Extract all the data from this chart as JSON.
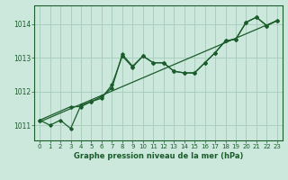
{
  "title": "Graphe pression niveau de la mer (hPa)",
  "bg_color": "#cce8dd",
  "grid_color": "#aacfbf",
  "line_color": "#1a5c2a",
  "marker_color": "#1a5c2a",
  "xlim": [
    -0.5,
    23.5
  ],
  "ylim": [
    1010.55,
    1014.55
  ],
  "yticks": [
    1011,
    1012,
    1013,
    1014
  ],
  "xticks": [
    0,
    1,
    2,
    3,
    4,
    5,
    6,
    7,
    8,
    9,
    10,
    11,
    12,
    13,
    14,
    15,
    16,
    17,
    18,
    19,
    20,
    21,
    22,
    23
  ],
  "series1_x": [
    0,
    1,
    2,
    3,
    4,
    5,
    6,
    7,
    8,
    9,
    10,
    11,
    12,
    13,
    14,
    15,
    16,
    17,
    18,
    19,
    20,
    21,
    22,
    23
  ],
  "series1_y": [
    1011.15,
    1011.0,
    1011.15,
    1010.9,
    1011.6,
    1011.7,
    1011.85,
    1012.1,
    1013.1,
    1012.75,
    1013.05,
    1012.85,
    1012.85,
    1012.6,
    1012.55,
    1012.55,
    1012.85,
    1013.15,
    1013.5,
    1013.55,
    1014.05,
    1014.2,
    1013.95,
    1014.1
  ],
  "series2_x": [
    0,
    3,
    4,
    5,
    6,
    7,
    8,
    9,
    10,
    11,
    12,
    13,
    14,
    15,
    16,
    17,
    18,
    19,
    20,
    21,
    22,
    23
  ],
  "series2_y": [
    1011.15,
    1011.55,
    1011.55,
    1011.7,
    1011.8,
    1012.2,
    1013.05,
    1012.72,
    1013.05,
    1012.85,
    1012.85,
    1012.6,
    1012.55,
    1012.55,
    1012.85,
    1013.15,
    1013.5,
    1013.55,
    1014.05,
    1014.2,
    1013.95,
    1014.1
  ],
  "trend_x": [
    0,
    23
  ],
  "trend_y": [
    1011.1,
    1014.1
  ]
}
